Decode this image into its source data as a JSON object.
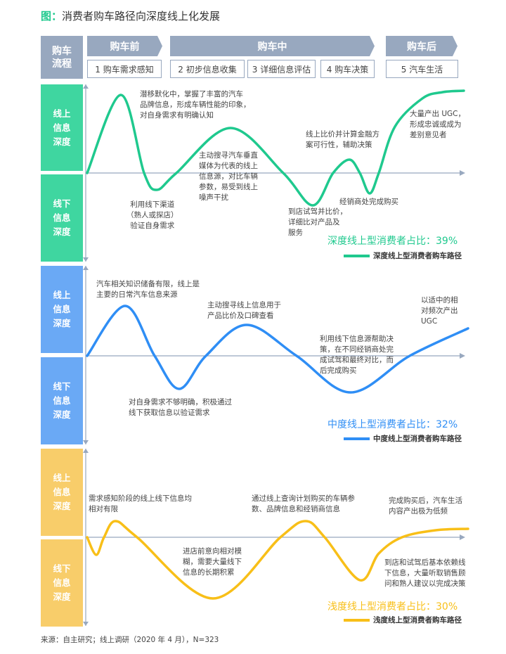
{
  "title": {
    "prefix": "图：",
    "text": "消费者购车路径向深度线上化发展"
  },
  "header": {
    "flow_label": "购车\n流程",
    "phases": [
      "购车前",
      "购车中",
      "购车后"
    ],
    "steps": [
      "1 购车需求感知",
      "2 初步信息收集",
      "3 详细信息评估",
      "4 购车决策",
      "5 汽车生活"
    ]
  },
  "colors": {
    "header": "#98a8bf",
    "deep": "#1fc98e",
    "medium": "#2f8ef5",
    "shallow": "#f8bf18",
    "deep_side": "#3fd6a0",
    "medium_side": "#6aa9f5",
    "shallow_side": "#f8cd6a"
  },
  "side_labels": {
    "online": "线上\n信息\n深度",
    "offline": "线下\n信息\n深度"
  },
  "panels": [
    {
      "type": "deep",
      "percent_label": "深度线上型消费者占比：39%",
      "legend": "深度线上型消费者购车路径",
      "notes": [
        "潜移默化中，掌握了丰富的汽车\n品牌信息，形成车辆性能的印象，\n对自身需求有明确认知",
        "利用线下渠道\n（熟人或探店）\n验证自身需求",
        "主动搜寻汽车垂直\n媒体为代表的线上\n信息源，对比车辆\n参数，易受到线上\n噪声干扰",
        "到店试驾并比价，\n详细比对产品及\n服务",
        "线上比价并计算金融方\n案可行性，辅助决策",
        "经销商处完成购买",
        "大量产出 UGC，\n形成忠诚或成为\n差别意见者"
      ]
    },
    {
      "type": "medium",
      "percent_label": "中度线上型消费者占比：32%",
      "legend": "中度线上型消费者购车路径",
      "notes": [
        "汽车相关知识储备有限，线上是\n主要的日常汽车信息来源",
        "对自身需求不够明确，积极通过\n线下获取信息以验证需求",
        "主动搜寻线上信息用于\n产品比价及口碑查看",
        "利用线下信息源帮助决\n策，在不同经销商处完\n成试驾和最终对比，而\n后完成购买",
        "以适中的相\n对频次产出\nUGC"
      ]
    },
    {
      "type": "shallow",
      "percent_label": "浅度线上型消费者占比：30%",
      "legend": "浅度线上型消费者购车路径",
      "notes": [
        "需求感知阶段的线上线下信息均\n相对有限",
        "进店前意向相对模\n糊，需要大量线下\n信息的长期积累",
        "通过线上查询计划购买的车辆参\n数、品牌信息和经销商信息",
        "完成购买后，汽车生活\n内容产出极为低频",
        "到店和试驾后基本依赖线\n下信息，大量听取销售顾\n问和熟人建议以完成决策"
      ]
    }
  ],
  "footer": "来源：自主研究；线上调研（2020 年 4 月），N=323"
}
